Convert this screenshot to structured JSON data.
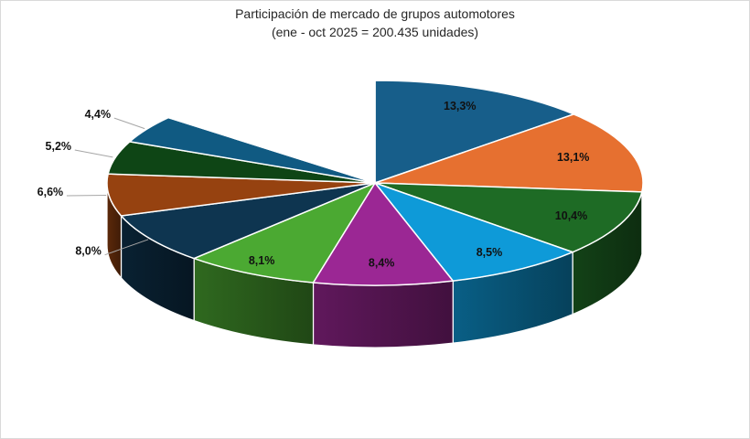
{
  "chart_data": {
    "type": "pie",
    "title": "",
    "subtitle": [
      "Participación de mercado de grupos automotores",
      "(ene - oct 2025 = 200.435 unidades)"
    ],
    "slices": [
      {
        "label": "13,3%",
        "value": 13.3,
        "color": "#175E8A"
      },
      {
        "label": "13,1%",
        "value": 13.1,
        "color": "#E67030"
      },
      {
        "label": "10,4%",
        "value": 10.4,
        "color": "#1E6B25"
      },
      {
        "label": "8,5%",
        "value": 8.5,
        "color": "#0E9AD8"
      },
      {
        "label": "8,4%",
        "value": 8.4,
        "color": "#9B2794"
      },
      {
        "label": "8,1%",
        "value": 8.1,
        "color": "#4BA932"
      },
      {
        "label": "8,0%",
        "value": 8.0,
        "color": "#0E3550"
      },
      {
        "label": "6,6%",
        "value": 6.6,
        "color": "#964210"
      },
      {
        "label": "5,2%",
        "value": 5.2,
        "color": "#0E4515"
      },
      {
        "label": "4,4%",
        "value": 4.4,
        "color": "#105A82"
      }
    ],
    "remainder_value": 14.0,
    "legend": "none",
    "style": "3d-exploded"
  }
}
